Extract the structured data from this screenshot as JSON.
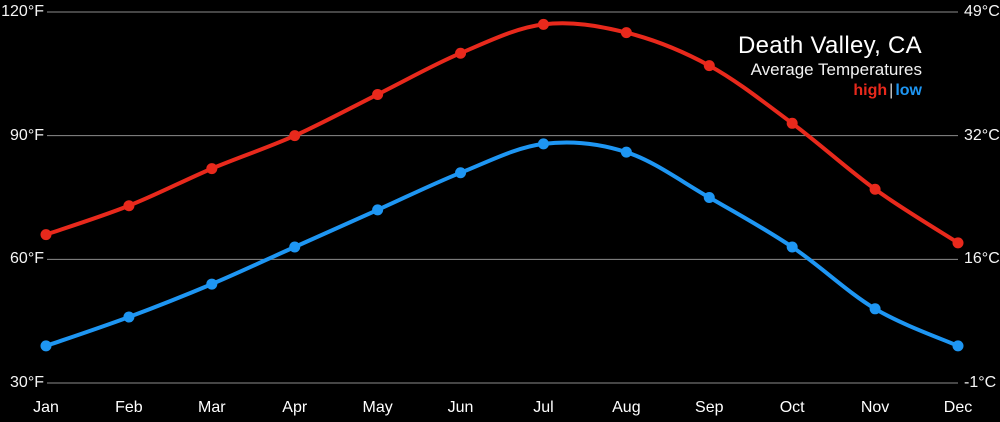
{
  "title": "Death Valley, CA",
  "subtitle": "Average Temperatures",
  "legend": {
    "high_label": "high",
    "separator": "|",
    "low_label": "low"
  },
  "colors": {
    "high": "#e8291c",
    "low": "#1e96f3",
    "grid": "#8c8c8c",
    "background": "#000000",
    "text": "#ffffff",
    "legend_separator": "#d9d9d9"
  },
  "chart_data": {
    "type": "line",
    "title": "Death Valley, CA",
    "subtitle": "Average Temperatures",
    "categories": [
      "Jan",
      "Feb",
      "Mar",
      "Apr",
      "May",
      "Jun",
      "Jul",
      "Aug",
      "Sep",
      "Oct",
      "Nov",
      "Dec"
    ],
    "series": [
      {
        "name": "high",
        "color": "#e8291c",
        "unit": "°F",
        "values": [
          66,
          73,
          82,
          90,
          100,
          110,
          117,
          115,
          107,
          93,
          77,
          64
        ]
      },
      {
        "name": "low",
        "color": "#1e96f3",
        "unit": "°F",
        "values": [
          39,
          46,
          54,
          63,
          72,
          81,
          88,
          86,
          75,
          63,
          48,
          39
        ]
      }
    ],
    "left_axis": {
      "unit": "°F",
      "tick_values": [
        120,
        90,
        60,
        30
      ],
      "tick_labels": [
        "120°F",
        "90°F",
        "60°F",
        "30°F"
      ]
    },
    "right_axis": {
      "unit": "°C",
      "tick_labels": [
        "49°C",
        "32°C",
        "16°C",
        "-1°C"
      ]
    },
    "ylim": [
      30,
      120
    ],
    "grid": true,
    "legend_position": "top-right",
    "marker": "circle",
    "smooth": true
  }
}
